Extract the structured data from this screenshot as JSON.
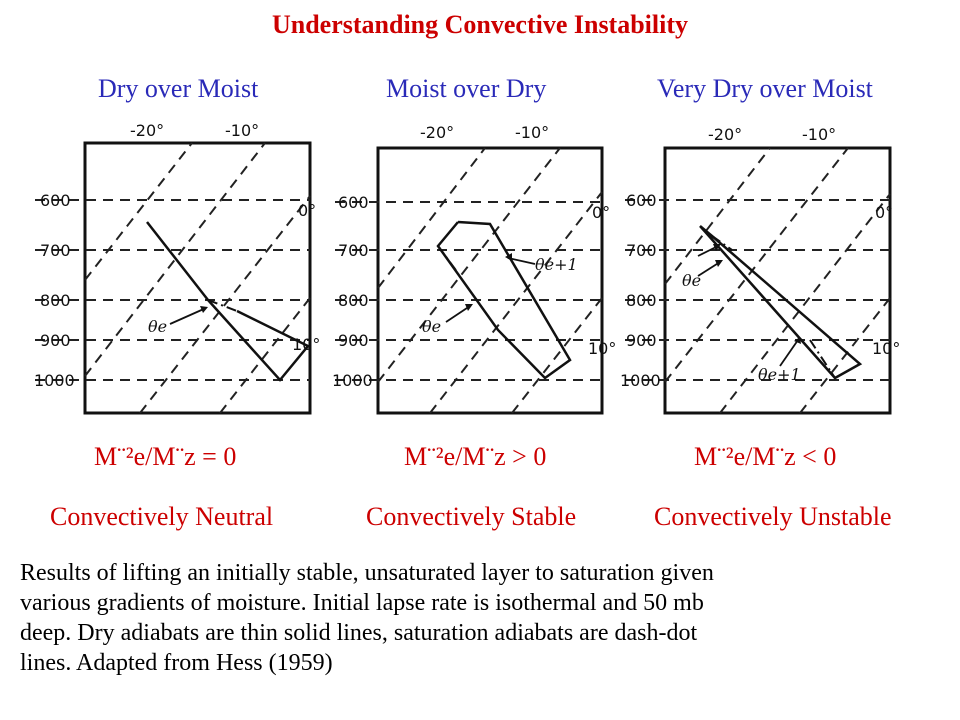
{
  "title": "Understanding Convective Instability",
  "panels": [
    {
      "heading": "Dry over Moist",
      "formula": "M¨²e/M¨z = 0",
      "verdict": "Convectively Neutral"
    },
    {
      "heading": "Moist over Dry",
      "formula": "M¨²e/M¨z > 0",
      "verdict": "Convectively Stable"
    },
    {
      "heading": "Very Dry over Moist",
      "formula": "M¨²e/M¨z < 0",
      "verdict": "Convectively Unstable"
    }
  ],
  "diagram": {
    "pressure_labels": [
      "600",
      "700",
      "800",
      "900",
      "1000"
    ],
    "temp_top": [
      "-20°",
      "-10°"
    ],
    "temp_right": [
      "0°",
      "10°"
    ],
    "theta_label": "θe",
    "theta_plus_label": "θe+1"
  },
  "caption": [
    "Results of lifting an initially stable, unsaturated layer to saturation given",
    "various gradients of moisture.  Initial lapse rate is isothermal and 50 mb",
    "deep.  Dry adiabats are thin solid lines, saturation adiabats are dash-dot",
    "lines.  Adapted from Hess (1959)"
  ],
  "colors": {
    "title": "#cc0000",
    "heading": "#2a2ab8",
    "formula": "#cc0000",
    "verdict": "#cc0000"
  }
}
